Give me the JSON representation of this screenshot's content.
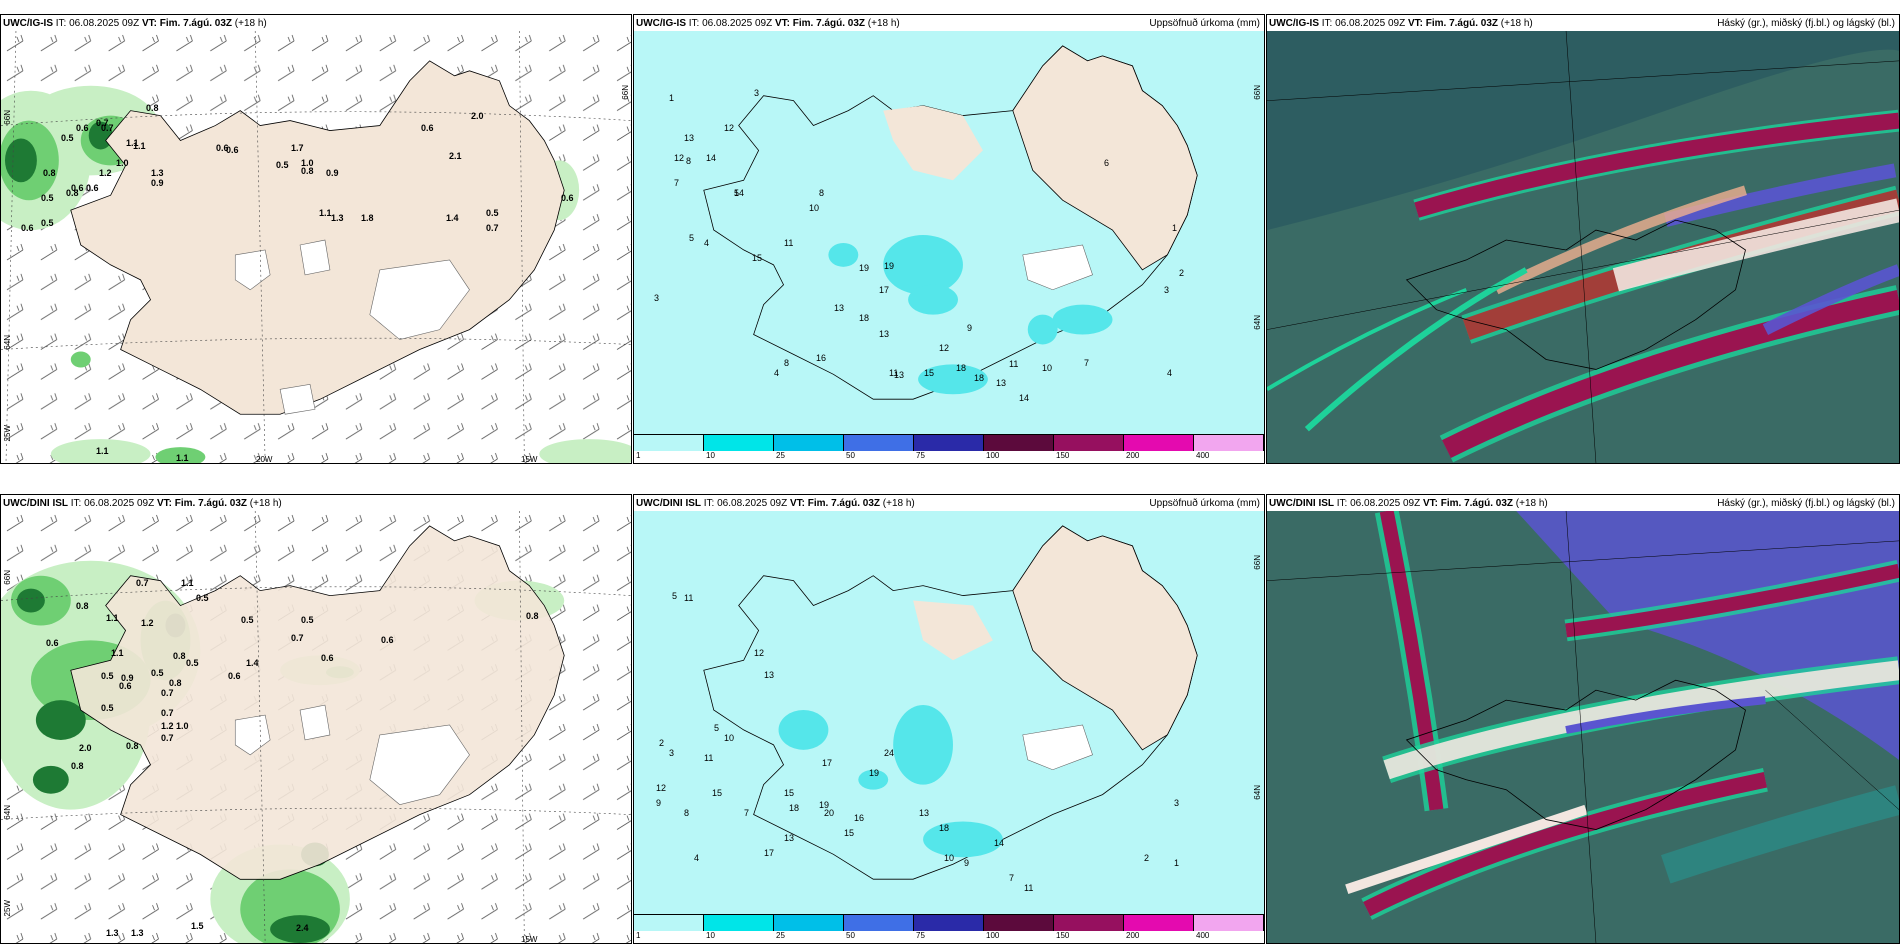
{
  "panels": {
    "top_left": {
      "model": "UWC/IG-IS",
      "it_label": "IT:",
      "it": "06.08.2025 09Z",
      "vt_label": "VT:",
      "vt": "Fim. 7.ágú. 03Z",
      "lead": "(+18 h)",
      "right": ""
    },
    "top_mid": {
      "model": "UWC/IG-IS",
      "it_label": "IT:",
      "it": "06.08.2025 09Z",
      "vt_label": "VT:",
      "vt": "Fim. 7.ágú. 03Z",
      "lead": "(+18 h)",
      "right": "Uppsöfnuð úrkoma (mm)"
    },
    "top_right": {
      "model": "UWC/IG-IS",
      "it_label": "IT:",
      "it": "06.08.2025 09Z",
      "vt_label": "VT:",
      "vt": "Fim. 7.ágú. 03Z",
      "lead": "(+18 h)",
      "right": "Háský (gr.), miðský (fj.bl.) og lágský (bl.)"
    },
    "bot_left": {
      "model": "UWC/DINI ISL",
      "it_label": "IT:",
      "it": "06.08.2025 09Z",
      "vt_label": "VT:",
      "vt": "Fim. 7.ágú. 03Z",
      "lead": "(+18 h)",
      "right": ""
    },
    "bot_mid": {
      "model": "UWC/DINI ISL",
      "it_label": "IT:",
      "it": "06.08.2025 09Z",
      "vt_label": "VT:",
      "vt": "Fim. 7.ágú. 03Z",
      "lead": "(+18 h)",
      "right": "Uppsöfnuð úrkoma (mm)"
    },
    "bot_right": {
      "model": "UWC/DINI ISL",
      "it_label": "IT:",
      "it": "06.08.2025 09Z",
      "vt_label": "VT:",
      "vt": "Fim. 7.ágú. 03Z",
      "lead": "(+18 h)",
      "right": "Háský (gr.), miðský (fj.bl.) og lágský (bl.)"
    }
  },
  "axis_labels": {
    "lat66": "66N",
    "lat64": "64N",
    "lon20": "20W",
    "lon15": "15W",
    "lon25": "25W"
  },
  "precip_legend": {
    "labels": [
      "1",
      "10",
      "25",
      "50",
      "75",
      "100",
      "150",
      "200",
      "400"
    ],
    "colors": [
      "#b8f7f7",
      "#00e5e8",
      "#00bfe8",
      "#3f6fe6",
      "#2a2aa8",
      "#5c0a3c",
      "#96105f",
      "#e40aaf",
      "#f2a6ef"
    ]
  },
  "colors": {
    "land": "#f3e6d8",
    "glacier": "#ffffff",
    "precip_light": "#b8f7f7",
    "precip_mid": "#55e6ea",
    "green_light": "#c8efc4",
    "green_mid": "#6fcf73",
    "green_dark": "#1e7a34",
    "cloud_base": "#3a6b65",
    "cloud_high": "#1ed29a",
    "cloud_mid": "#9a1450",
    "cloud_low": "#5a55d0"
  },
  "top_left_values": [
    "0.8",
    "0.7",
    "0.6",
    "0.5",
    "1.1",
    "0.6",
    "0.8",
    "1.0",
    "0.9",
    "0.6",
    "1.2",
    "0.5",
    "1.3",
    "0.6",
    "1.1",
    "0.7",
    "0.5",
    "0.6",
    "0.5",
    "0.6",
    "0.8",
    "1.0",
    "0.8",
    "0.9",
    "1.7",
    "2.0",
    "0.6",
    "2.1",
    "1.4",
    "1.3",
    "1.8",
    "1.1",
    "0.5",
    "0.7",
    "0.6",
    "1.1",
    "1.1"
  ],
  "bot_left_values": [
    "0.7",
    "1.1",
    "0.5",
    "0.8",
    "1.1",
    "1.2",
    "0.8",
    "0.8",
    "0.6",
    "0.5",
    "1.4",
    "0.5",
    "0.5",
    "0.7",
    "0.9",
    "0.5",
    "0.7",
    "0.6",
    "1.1",
    "0.5",
    "1.2",
    "0.5",
    "1.0",
    "0.8",
    "0.7",
    "0.6",
    "0.8",
    "2.0",
    "0.7",
    "0.6",
    "0.6",
    "0.8",
    "1.3",
    "1.3",
    "1.5",
    "2.4"
  ],
  "top_mid_values": [
    "1",
    "3",
    "13",
    "12",
    "8",
    "7",
    "12",
    "14",
    "5",
    "5",
    "4",
    "3",
    "8",
    "11",
    "15",
    "10",
    "14",
    "19",
    "19",
    "18",
    "17",
    "13",
    "11",
    "15",
    "12",
    "13",
    "8",
    "16",
    "18",
    "18",
    "14",
    "13",
    "11",
    "10",
    "7",
    "4",
    "3",
    "2",
    "1",
    "6",
    "9",
    "13",
    "4"
  ],
  "bot_mid_values": [
    "5",
    "11",
    "12",
    "13",
    "5",
    "2",
    "3",
    "11",
    "12",
    "9",
    "15",
    "15",
    "18",
    "19",
    "17",
    "20",
    "24",
    "19",
    "17",
    "13",
    "15",
    "16",
    "13",
    "18",
    "14",
    "10",
    "9",
    "7",
    "11",
    "3",
    "2",
    "1",
    "10",
    "8",
    "4",
    "7"
  ]
}
